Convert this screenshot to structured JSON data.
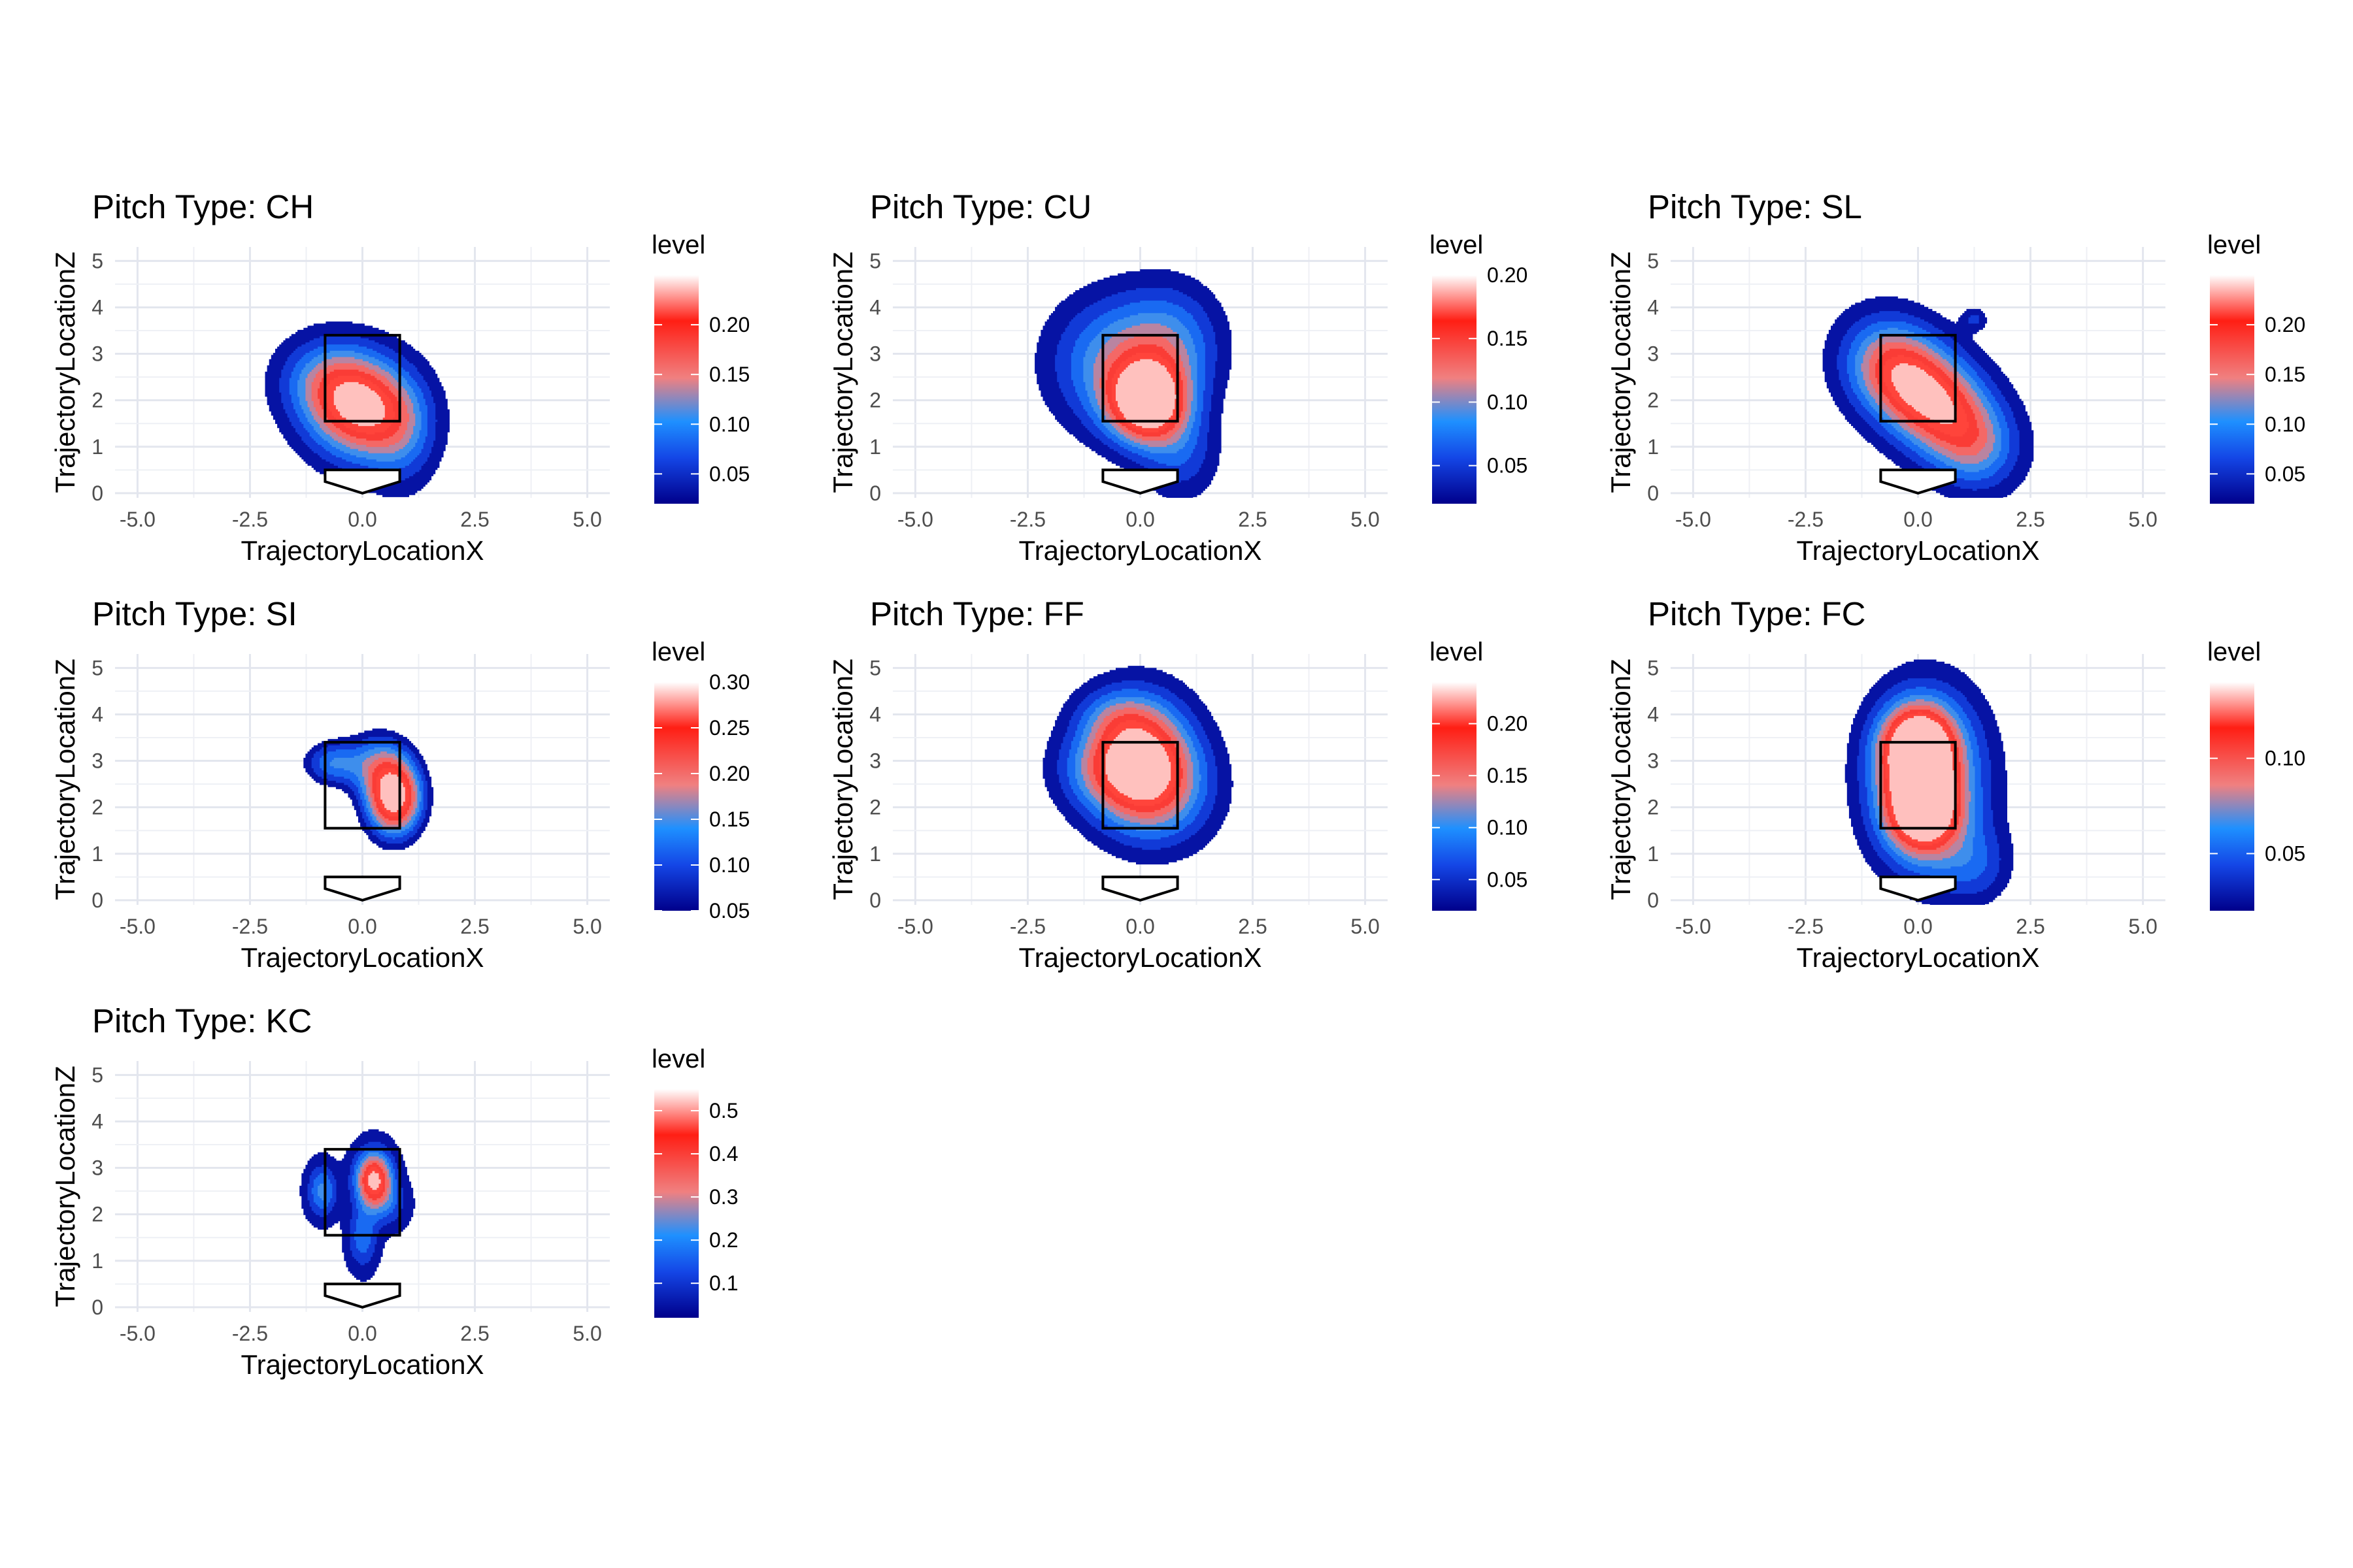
{
  "chart_data": [
    {
      "type": "density_contour",
      "title": "Pitch Type: CH",
      "xlabel": "TrajectoryLocationX",
      "ylabel": "TrajectoryLocationZ",
      "xlim": [
        -5.5,
        5.5
      ],
      "ylim": [
        -0.1,
        5.3
      ],
      "xticks": [
        "-5.0",
        "-2.5",
        "0.0",
        "2.5",
        "5.0"
      ],
      "yticks": [
        "0",
        "1",
        "2",
        "3",
        "4",
        "5"
      ],
      "legend_title": "level",
      "legend_ticks": [
        "0.05",
        "0.10",
        "0.15",
        "0.20"
      ],
      "level_range": [
        0.02,
        0.25
      ],
      "peaks": [
        {
          "x": -0.05,
          "z": 1.85,
          "level": 0.24,
          "sx": 0.85,
          "sz": 0.75,
          "rot": -25
        },
        {
          "x": -0.9,
          "z": 2.5,
          "level": 0.06,
          "sx": 0.7,
          "sz": 0.6,
          "rot": 0
        },
        {
          "x": 0.9,
          "z": 1.2,
          "level": 0.05,
          "sx": 0.5,
          "sz": 0.8,
          "rot": 0
        }
      ]
    },
    {
      "type": "density_contour",
      "title": "Pitch Type: CU",
      "xlabel": "TrajectoryLocationX",
      "ylabel": "TrajectoryLocationZ",
      "xlim": [
        -5.5,
        5.5
      ],
      "ylim": [
        -0.1,
        5.3
      ],
      "xticks": [
        "-5.0",
        "-2.5",
        "0.0",
        "2.5",
        "5.0"
      ],
      "yticks": [
        "0",
        "1",
        "2",
        "3",
        "4",
        "5"
      ],
      "legend_title": "level",
      "legend_ticks": [
        "0.05",
        "0.10",
        "0.15",
        "0.20"
      ],
      "level_range": [
        0.02,
        0.2
      ],
      "peaks": [
        {
          "x": 0.15,
          "z": 1.95,
          "level": 0.2,
          "sx": 0.6,
          "sz": 0.6,
          "rot": 0
        },
        {
          "x": -0.6,
          "z": 2.8,
          "level": 0.09,
          "sx": 1.0,
          "sz": 1.0,
          "rot": 0
        },
        {
          "x": 0.7,
          "z": 3.2,
          "level": 0.07,
          "sx": 0.8,
          "sz": 0.9,
          "rot": 0
        },
        {
          "x": 0.9,
          "z": 0.8,
          "level": 0.05,
          "sx": 0.6,
          "sz": 0.7,
          "rot": 0
        }
      ]
    },
    {
      "type": "density_contour",
      "title": "Pitch Type: SL",
      "xlabel": "TrajectoryLocationX",
      "ylabel": "TrajectoryLocationZ",
      "xlim": [
        -5.5,
        5.5
      ],
      "ylim": [
        -0.1,
        5.3
      ],
      "xticks": [
        "-5.0",
        "-2.5",
        "0.0",
        "2.5",
        "5.0"
      ],
      "yticks": [
        "0",
        "1",
        "2",
        "3",
        "4",
        "5"
      ],
      "legend_title": "level",
      "legend_ticks": [
        "0.05",
        "0.10",
        "0.15",
        "0.20"
      ],
      "level_range": [
        0.02,
        0.25
      ],
      "peaks": [
        {
          "x": 0.3,
          "z": 2.0,
          "level": 0.24,
          "sx": 1.1,
          "sz": 0.7,
          "rot": -40
        },
        {
          "x": -0.7,
          "z": 2.8,
          "level": 0.08,
          "sx": 0.7,
          "sz": 0.7,
          "rot": 0
        },
        {
          "x": 1.3,
          "z": 0.9,
          "level": 0.06,
          "sx": 0.6,
          "sz": 0.6,
          "rot": 0
        },
        {
          "x": 1.25,
          "z": 3.75,
          "level": 0.05,
          "sx": 0.18,
          "sz": 0.16,
          "rot": 0
        }
      ]
    },
    {
      "type": "density_contour",
      "title": "Pitch Type: SI",
      "xlabel": "TrajectoryLocationX",
      "ylabel": "TrajectoryLocationZ",
      "xlim": [
        -5.5,
        5.5
      ],
      "ylim": [
        -0.1,
        5.3
      ],
      "xticks": [
        "-5.0",
        "-2.5",
        "0.0",
        "2.5",
        "5.0"
      ],
      "yticks": [
        "0",
        "1",
        "2",
        "3",
        "4",
        "5"
      ],
      "legend_title": "level",
      "legend_ticks": [
        "0.05",
        "0.10",
        "0.15",
        "0.20",
        "0.25",
        "0.30"
      ],
      "level_range": [
        0.05,
        0.3
      ],
      "peaks": [
        {
          "x": 0.7,
          "z": 2.2,
          "level": 0.3,
          "sx": 0.45,
          "sz": 0.6,
          "rot": 0
        },
        {
          "x": -0.7,
          "z": 2.95,
          "level": 0.12,
          "sx": 0.45,
          "sz": 0.35,
          "rot": 0
        },
        {
          "x": 0.3,
          "z": 3.0,
          "level": 0.1,
          "sx": 0.5,
          "sz": 0.5,
          "rot": 0
        }
      ]
    },
    {
      "type": "density_contour",
      "title": "Pitch Type: FF",
      "xlabel": "TrajectoryLocationX",
      "ylabel": "TrajectoryLocationZ",
      "xlim": [
        -5.5,
        5.5
      ],
      "ylim": [
        -0.1,
        5.3
      ],
      "xticks": [
        "-5.0",
        "-2.5",
        "0.0",
        "2.5",
        "5.0"
      ],
      "yticks": [
        "0",
        "1",
        "2",
        "3",
        "4",
        "5"
      ],
      "legend_title": "level",
      "legend_ticks": [
        "0.05",
        "0.10",
        "0.15",
        "0.20"
      ],
      "level_range": [
        0.02,
        0.24
      ],
      "peaks": [
        {
          "x": -0.05,
          "z": 3.0,
          "level": 0.24,
          "sx": 0.8,
          "sz": 0.9,
          "rot": 0
        },
        {
          "x": 0.6,
          "z": 2.3,
          "level": 0.07,
          "sx": 0.8,
          "sz": 0.8,
          "rot": 0
        },
        {
          "x": -1.0,
          "z": 2.8,
          "level": 0.05,
          "sx": 0.7,
          "sz": 0.6,
          "rot": 0
        },
        {
          "x": -0.6,
          "z": 4.0,
          "level": 0.04,
          "sx": 0.6,
          "sz": 0.4,
          "rot": 0
        }
      ]
    },
    {
      "type": "density_contour",
      "title": "Pitch Type: FC",
      "xlabel": "TrajectoryLocationX",
      "ylabel": "TrajectoryLocationZ",
      "xlim": [
        -5.5,
        5.5
      ],
      "ylim": [
        -0.1,
        5.3
      ],
      "xticks": [
        "-5.0",
        "-2.5",
        "0.0",
        "2.5",
        "5.0"
      ],
      "yticks": [
        "0",
        "1",
        "2",
        "3",
        "4",
        "5"
      ],
      "legend_title": "level",
      "legend_ticks": [
        "0.05",
        "0.10"
      ],
      "level_range": [
        0.02,
        0.14
      ],
      "peaks": [
        {
          "x": 0.0,
          "z": 3.3,
          "level": 0.14,
          "sx": 0.55,
          "sz": 0.6,
          "rot": 0
        },
        {
          "x": 0.1,
          "z": 2.0,
          "level": 0.14,
          "sx": 0.55,
          "sz": 0.65,
          "rot": 0
        },
        {
          "x": 0.2,
          "z": 2.6,
          "level": 0.07,
          "sx": 1.1,
          "sz": 1.6,
          "rot": 0
        },
        {
          "x": 1.3,
          "z": 0.7,
          "level": 0.03,
          "sx": 0.6,
          "sz": 0.6,
          "rot": 0
        }
      ]
    },
    {
      "type": "density_contour",
      "title": "Pitch Type: KC",
      "xlabel": "TrajectoryLocationX",
      "ylabel": "TrajectoryLocationZ",
      "xlim": [
        -5.5,
        5.5
      ],
      "ylim": [
        -0.1,
        5.3
      ],
      "xticks": [
        "-5.0",
        "-2.5",
        "0.0",
        "2.5",
        "5.0"
      ],
      "yticks": [
        "0",
        "1",
        "2",
        "3",
        "4",
        "5"
      ],
      "legend_title": "level",
      "legend_ticks": [
        "0.1",
        "0.2",
        "0.3",
        "0.4",
        "0.5"
      ],
      "level_range": [
        0.02,
        0.55
      ],
      "peaks": [
        {
          "x": 0.25,
          "z": 2.75,
          "level": 0.52,
          "sx": 0.28,
          "sz": 0.42,
          "rot": 0
        },
        {
          "x": -0.9,
          "z": 2.5,
          "level": 0.22,
          "sx": 0.22,
          "sz": 0.38,
          "rot": 0
        },
        {
          "x": 0.0,
          "z": 1.5,
          "level": 0.18,
          "sx": 0.22,
          "sz": 0.45,
          "rot": 0
        },
        {
          "x": 0.6,
          "z": 2.2,
          "level": 0.1,
          "sx": 0.3,
          "sz": 0.35,
          "rot": 0
        }
      ]
    }
  ]
}
